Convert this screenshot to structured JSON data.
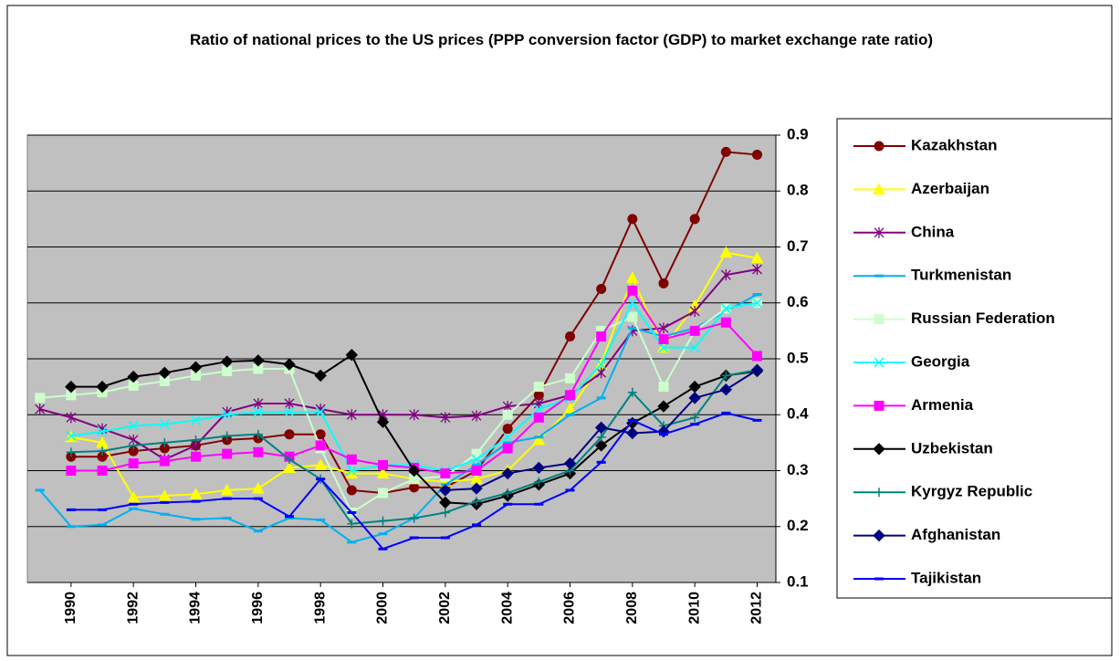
{
  "chart_data": {
    "type": "line",
    "title": "Ratio of national prices to the US prices (PPP conversion factor (GDP) to market exchange rate ratio)",
    "x": [
      1989,
      1990,
      1991,
      1992,
      1993,
      1994,
      1995,
      1996,
      1997,
      1998,
      1999,
      2000,
      2001,
      2002,
      2003,
      2004,
      2005,
      2006,
      2007,
      2008,
      2009,
      2010,
      2011,
      2012
    ],
    "xlim": [
      1988.6,
      2012.6
    ],
    "xticks": [
      1990,
      1992,
      1994,
      1996,
      1998,
      2000,
      2002,
      2004,
      2006,
      2008,
      2010,
      2012
    ],
    "ylim": [
      0.1,
      0.9
    ],
    "yticks": [
      0.1,
      0.2,
      0.3,
      0.4,
      0.5,
      0.6,
      0.7,
      0.8,
      0.9
    ],
    "grid": true,
    "legend": "right",
    "series": [
      {
        "name": "Kazakhstan",
        "color": "#800000",
        "marker": "circle",
        "values": [
          null,
          0.325,
          0.325,
          0.335,
          0.34,
          0.345,
          0.355,
          0.358,
          0.365,
          0.365,
          0.265,
          0.26,
          0.27,
          0.27,
          0.3,
          0.375,
          0.435,
          0.54,
          0.625,
          0.75,
          0.635,
          0.75,
          0.87,
          0.865
        ]
      },
      {
        "name": "Azerbaijan",
        "color": "#ffff00",
        "marker": "triangle",
        "values": [
          null,
          0.36,
          0.35,
          0.252,
          0.255,
          0.258,
          0.265,
          0.268,
          0.305,
          0.31,
          0.295,
          0.295,
          0.285,
          0.28,
          0.285,
          0.3,
          0.355,
          0.41,
          0.49,
          0.645,
          0.52,
          0.595,
          0.69,
          0.68
        ]
      },
      {
        "name": "China",
        "color": "#800080",
        "marker": "star",
        "values": [
          0.41,
          0.395,
          0.375,
          0.355,
          0.32,
          0.345,
          0.405,
          0.42,
          0.42,
          0.41,
          0.4,
          0.4,
          0.4,
          0.395,
          0.398,
          0.415,
          0.42,
          0.435,
          0.475,
          0.55,
          0.555,
          0.585,
          0.65,
          0.66
        ]
      },
      {
        "name": "Turkmenistan",
        "color": "#00b0f0",
        "marker": "dash",
        "values": [
          0.265,
          0.2,
          0.203,
          0.232,
          0.222,
          0.213,
          0.215,
          0.192,
          0.215,
          0.212,
          0.172,
          0.187,
          0.215,
          0.275,
          0.31,
          0.35,
          0.36,
          0.4,
          0.43,
          0.555,
          0.54,
          0.555,
          0.585,
          0.615
        ]
      },
      {
        "name": "Russian Federation",
        "color": "#ccffcc",
        "marker": "square",
        "values": [
          0.43,
          0.435,
          0.44,
          0.452,
          0.46,
          0.47,
          0.478,
          0.482,
          0.482,
          0.34,
          0.225,
          0.26,
          0.285,
          0.29,
          0.33,
          0.4,
          0.45,
          0.465,
          0.55,
          0.575,
          0.45,
          0.55,
          0.59,
          0.6
        ]
      },
      {
        "name": "Georgia",
        "color": "#00ffff",
        "marker": "x",
        "values": [
          null,
          0.362,
          0.37,
          0.38,
          0.383,
          0.39,
          0.4,
          0.405,
          0.405,
          0.405,
          0.3,
          0.31,
          0.31,
          0.3,
          0.32,
          0.36,
          0.41,
          0.43,
          0.49,
          0.6,
          0.52,
          0.52,
          0.59,
          0.6
        ]
      },
      {
        "name": "Armenia",
        "color": "#ff00ff",
        "marker": "square",
        "values": [
          null,
          0.3,
          0.3,
          0.313,
          0.317,
          0.325,
          0.33,
          0.333,
          0.325,
          0.345,
          0.32,
          0.31,
          0.305,
          0.295,
          0.3,
          0.34,
          0.395,
          0.435,
          0.54,
          0.622,
          0.535,
          0.55,
          0.565,
          0.505
        ]
      },
      {
        "name": "Uzbekistan",
        "color": "#000000",
        "marker": "diamond",
        "values": [
          null,
          0.45,
          0.45,
          0.468,
          0.475,
          0.485,
          0.495,
          0.497,
          0.49,
          0.47,
          0.507,
          0.387,
          0.3,
          0.243,
          0.24,
          0.255,
          0.275,
          0.295,
          0.345,
          0.385,
          0.415,
          0.45,
          0.47,
          0.478
        ]
      },
      {
        "name": "Kyrgyz Republic",
        "color": "#008080",
        "marker": "plus",
        "values": [
          null,
          0.333,
          0.335,
          0.345,
          0.35,
          0.355,
          0.362,
          0.365,
          0.32,
          0.285,
          0.205,
          0.21,
          0.215,
          0.225,
          0.245,
          0.26,
          0.28,
          0.3,
          0.36,
          0.44,
          0.38,
          0.395,
          0.47,
          0.48
        ]
      },
      {
        "name": "Afghanistan",
        "color": "#000080",
        "marker": "diamond",
        "values": [
          null,
          null,
          null,
          null,
          null,
          null,
          null,
          null,
          null,
          null,
          null,
          null,
          null,
          0.265,
          0.268,
          0.295,
          0.305,
          0.313,
          0.377,
          0.367,
          0.37,
          0.43,
          0.445,
          0.48
        ]
      },
      {
        "name": "Tajikistan",
        "color": "#0000ff",
        "marker": "dash",
        "values": [
          null,
          0.23,
          0.23,
          0.24,
          0.243,
          0.245,
          0.25,
          0.25,
          0.218,
          0.285,
          0.225,
          0.16,
          0.18,
          0.18,
          0.203,
          0.24,
          0.24,
          0.265,
          0.315,
          0.39,
          0.365,
          0.383,
          0.403,
          0.39
        ]
      }
    ]
  }
}
